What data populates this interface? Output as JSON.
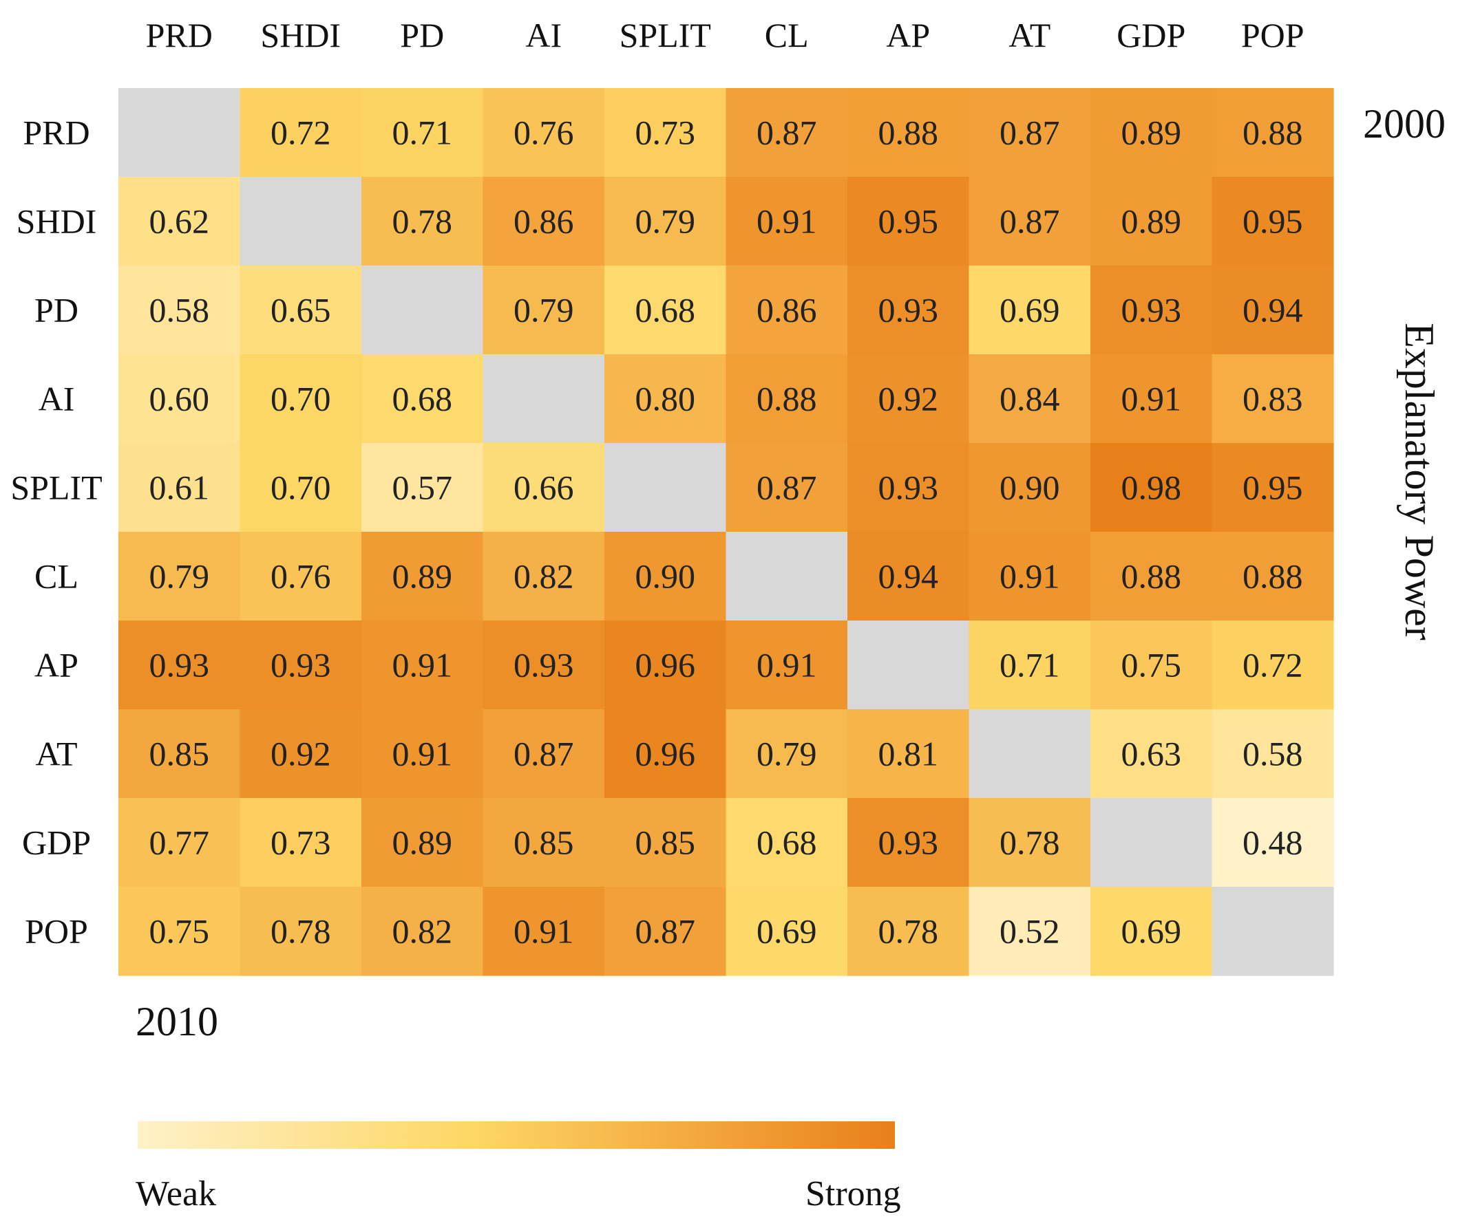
{
  "chart_data": {
    "type": "heatmap",
    "variables": [
      "PRD",
      "SHDI",
      "PD",
      "AI",
      "SPLIT",
      "CL",
      "AP",
      "AT",
      "GDP",
      "POP"
    ],
    "matrix": [
      [
        null,
        "0.72",
        "0.71",
        "0.76",
        "0.73",
        "0.87",
        "0.88",
        "0.87",
        "0.89",
        "0.88"
      ],
      [
        "0.62",
        null,
        "0.78",
        "0.86",
        "0.79",
        "0.91",
        "0.95",
        "0.87",
        "0.89",
        "0.95"
      ],
      [
        "0.58",
        "0.65",
        null,
        "0.79",
        "0.68",
        "0.86",
        "0.93",
        "0.69",
        "0.93",
        "0.94"
      ],
      [
        "0.60",
        "0.70",
        "0.68",
        null,
        "0.80",
        "0.88",
        "0.92",
        "0.84",
        "0.91",
        "0.83"
      ],
      [
        "0.61",
        "0.70",
        "0.57",
        "0.66",
        null,
        "0.87",
        "0.93",
        "0.90",
        "0.98",
        "0.95"
      ],
      [
        "0.79",
        "0.76",
        "0.89",
        "0.82",
        "0.90",
        null,
        "0.94",
        "0.91",
        "0.88",
        "0.88"
      ],
      [
        "0.93",
        "0.93",
        "0.91",
        "0.93",
        "0.96",
        "0.91",
        null,
        "0.71",
        "0.75",
        "0.72"
      ],
      [
        "0.85",
        "0.92",
        "0.91",
        "0.87",
        "0.96",
        "0.79",
        "0.81",
        null,
        "0.63",
        "0.58"
      ],
      [
        "0.77",
        "0.73",
        "0.89",
        "0.85",
        "0.85",
        "0.68",
        "0.93",
        "0.78",
        null,
        "0.48"
      ],
      [
        "0.75",
        "0.78",
        "0.82",
        "0.91",
        "0.87",
        "0.69",
        "0.78",
        "0.52",
        "0.69",
        null
      ]
    ],
    "upper_triangle_label": "2000",
    "lower_triangle_label": "2010",
    "axis_title": "Explanatory Power",
    "legend": {
      "min_label": "Weak",
      "max_label": "Strong"
    },
    "value_range": [
      0.48,
      0.98
    ]
  },
  "colors": {
    "diagonal": "#d8d8d8",
    "scale": [
      "#fff1c8",
      "#fdd663",
      "#f3a53e",
      "#e8801a"
    ]
  }
}
